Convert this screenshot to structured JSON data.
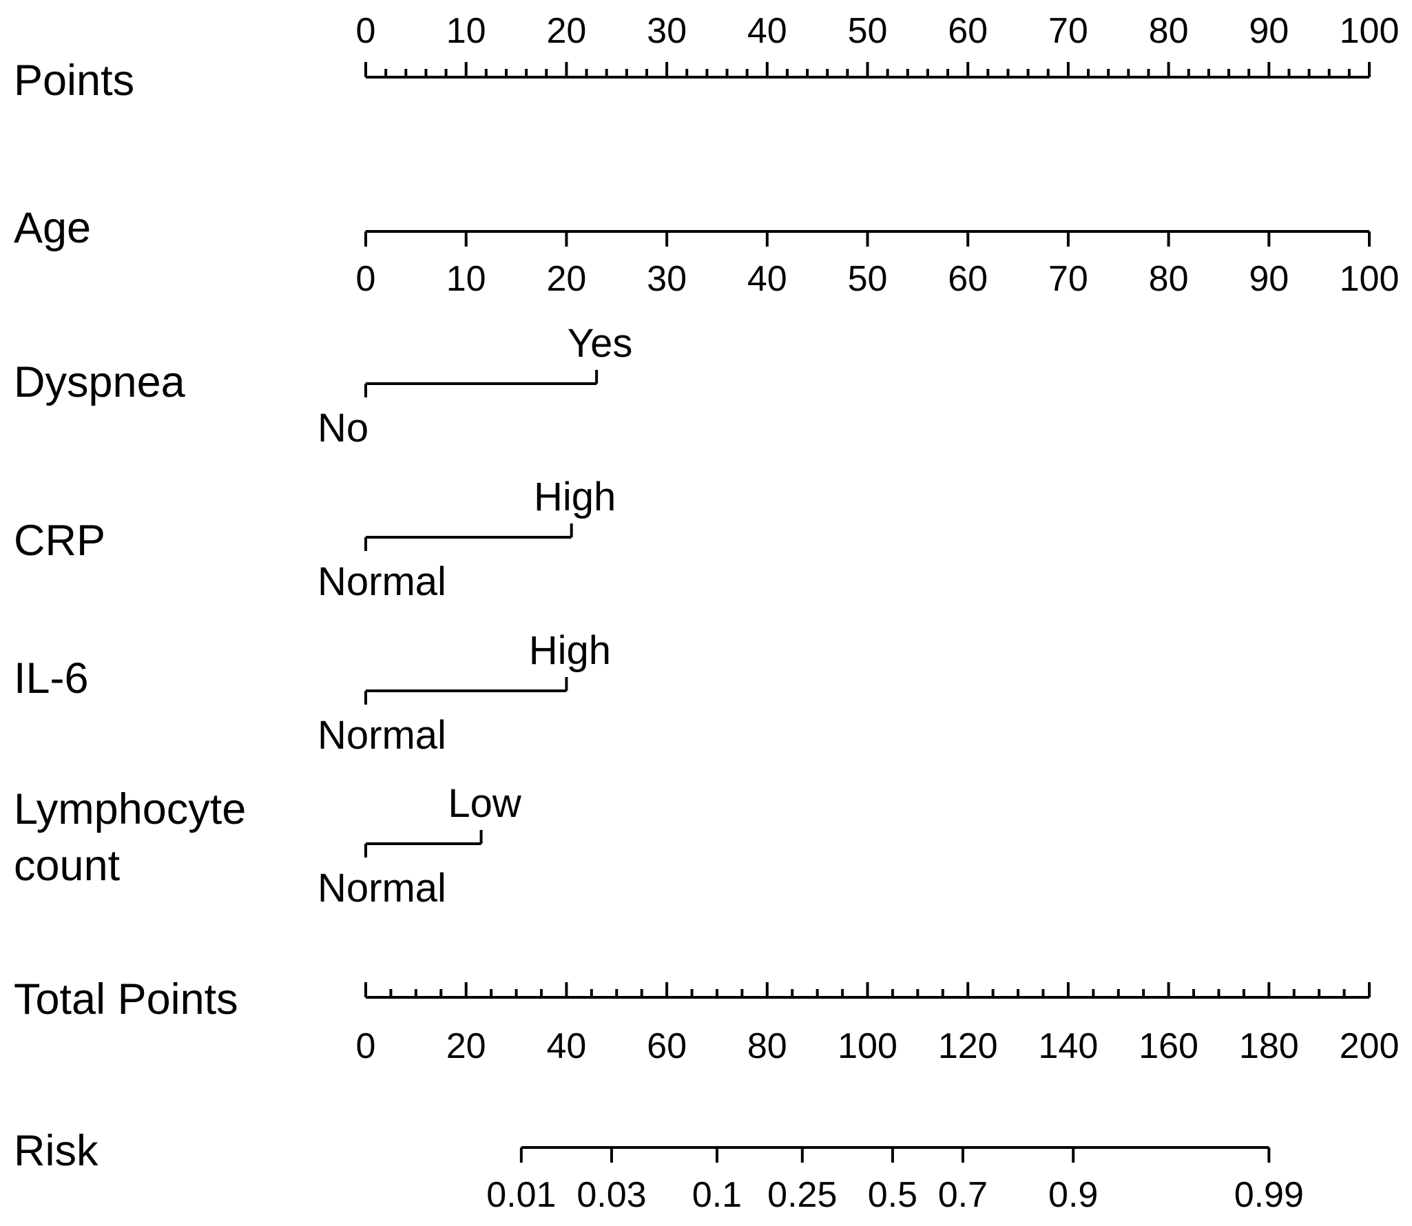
{
  "chart_data": {
    "type": "nomogram",
    "points_scale": {
      "label": "Points",
      "ticks": [
        0,
        10,
        20,
        30,
        40,
        50,
        60,
        70,
        80,
        90,
        100
      ],
      "minor_step": 2,
      "range": [
        0,
        100
      ]
    },
    "variables": [
      {
        "key": "age",
        "label_lines": [
          "Age"
        ],
        "kind": "continuous",
        "ticks": [
          0,
          10,
          20,
          30,
          40,
          50,
          60,
          70,
          80,
          90,
          100
        ],
        "points_range": [
          0,
          100
        ]
      },
      {
        "key": "dyspnea",
        "label_lines": [
          "Dyspnea"
        ],
        "kind": "categorical",
        "levels": [
          {
            "label": "No",
            "points": 0
          },
          {
            "label": "Yes",
            "points": 23
          }
        ]
      },
      {
        "key": "crp",
        "label_lines": [
          "CRP"
        ],
        "kind": "categorical",
        "levels": [
          {
            "label": "Normal",
            "points": 0
          },
          {
            "label": "High",
            "points": 20.5
          }
        ]
      },
      {
        "key": "il6",
        "label_lines": [
          "IL-6"
        ],
        "kind": "categorical",
        "levels": [
          {
            "label": "Normal",
            "points": 0
          },
          {
            "label": "High",
            "points": 20
          }
        ]
      },
      {
        "key": "lymphocyte",
        "label_lines": [
          "Lymphocyte",
          "count"
        ],
        "kind": "categorical",
        "levels": [
          {
            "label": "Normal",
            "points": 0
          },
          {
            "label": "Low",
            "points": 11.5
          }
        ]
      }
    ],
    "total_points": {
      "label": "Total Points",
      "ticks": [
        0,
        20,
        40,
        60,
        80,
        100,
        120,
        140,
        160,
        180,
        200
      ],
      "minor_step": 5,
      "range": [
        0,
        200
      ]
    },
    "risk": {
      "label": "Risk",
      "ticks": [
        {
          "label": "0.01",
          "total_points": 31
        },
        {
          "label": "0.03",
          "total_points": 49
        },
        {
          "label": "0.1",
          "total_points": 70
        },
        {
          "label": "0.25",
          "total_points": 87
        },
        {
          "label": "0.5",
          "total_points": 105
        },
        {
          "label": "0.7",
          "total_points": 119
        },
        {
          "label": "0.9",
          "total_points": 141
        },
        {
          "label": "0.99",
          "total_points": 180
        }
      ]
    }
  }
}
